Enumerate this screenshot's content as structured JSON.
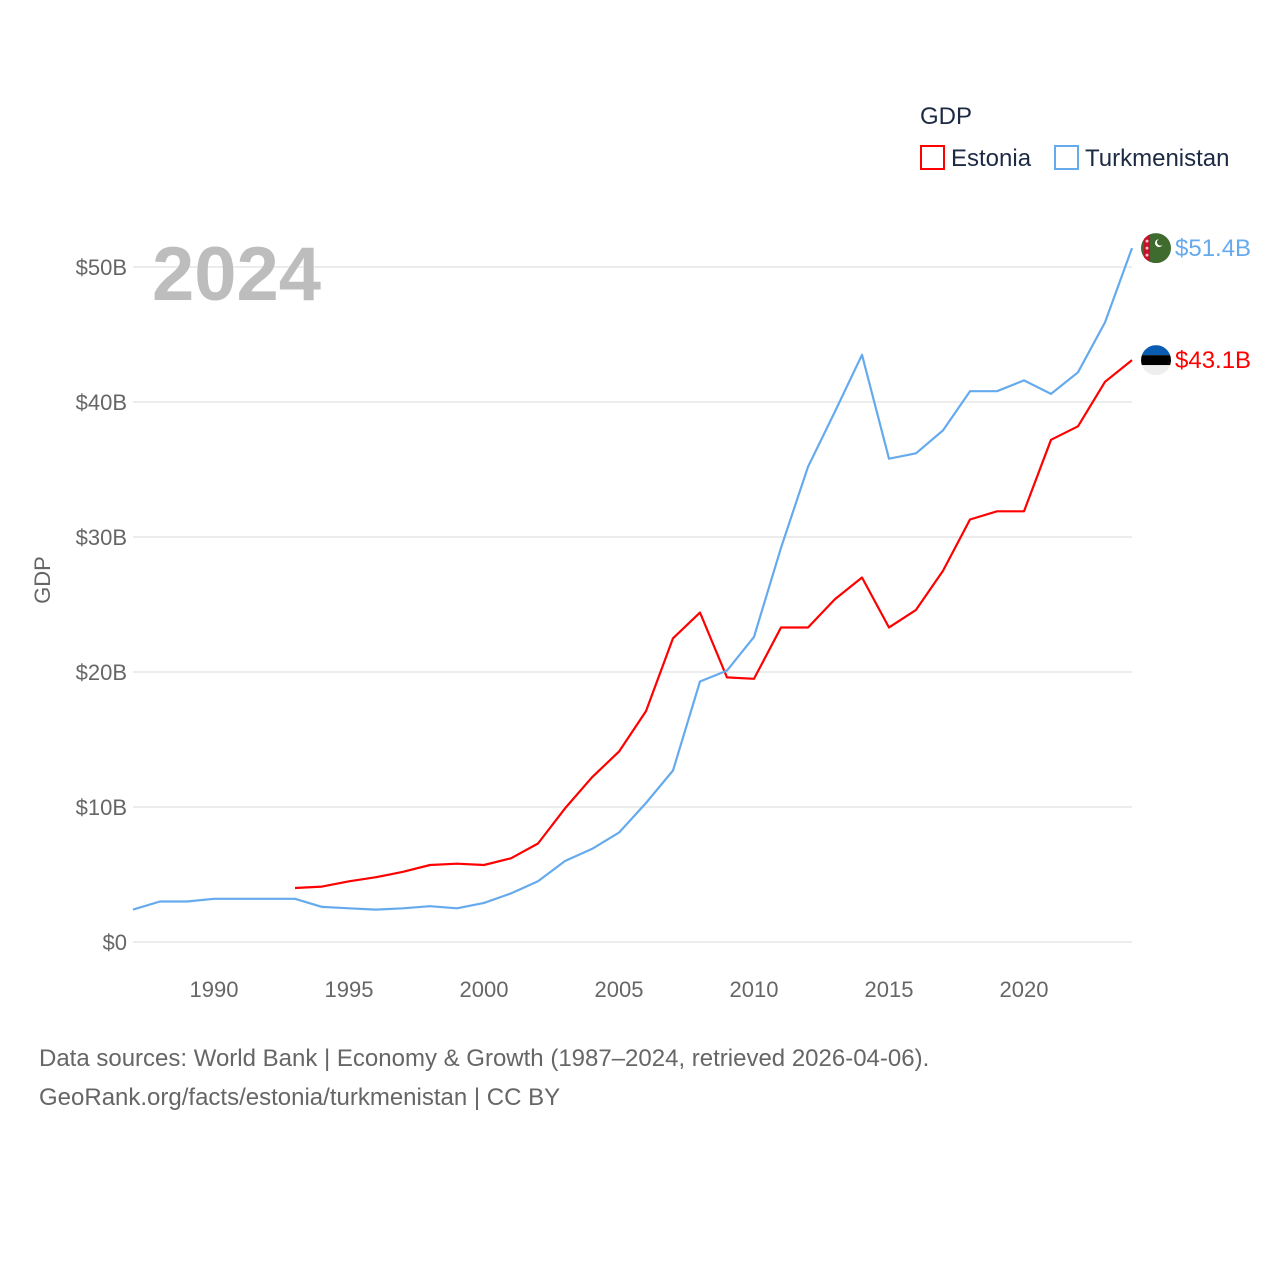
{
  "chart_data": {
    "type": "line",
    "title": "GDP",
    "year_label": "2024",
    "xlabel": "",
    "ylabel": "GDP",
    "xlim": [
      1987,
      2024
    ],
    "ylim": [
      0,
      50
    ],
    "x_ticks": [
      1990,
      1995,
      2000,
      2005,
      2010,
      2015,
      2020
    ],
    "x_tick_labels": [
      "1990",
      "1995",
      "2000",
      "2005",
      "2010",
      "2015",
      "2020"
    ],
    "y_ticks": [
      0,
      10,
      20,
      30,
      40,
      50
    ],
    "y_tick_labels": [
      "$0",
      "$10B",
      "$20B",
      "$30B",
      "$40B",
      "$50B"
    ],
    "grid": true,
    "legend_placement": "top-right",
    "series": [
      {
        "name": "Estonia",
        "color": "#ff0000",
        "end_label": "$43.1B",
        "flag": "estonia-flag",
        "x": [
          1993,
          1994,
          1995,
          1996,
          1997,
          1998,
          1999,
          2000,
          2001,
          2002,
          2003,
          2004,
          2005,
          2006,
          2007,
          2008,
          2009,
          2010,
          2011,
          2012,
          2013,
          2014,
          2015,
          2016,
          2017,
          2018,
          2019,
          2020,
          2021,
          2022,
          2023,
          2024
        ],
        "values": [
          4.0,
          4.1,
          4.5,
          4.8,
          5.2,
          5.7,
          5.8,
          5.7,
          6.2,
          7.3,
          9.9,
          12.2,
          14.1,
          17.1,
          22.5,
          24.4,
          19.6,
          19.5,
          23.3,
          23.3,
          25.4,
          27.0,
          23.3,
          24.6,
          27.5,
          31.3,
          31.9,
          31.9,
          37.2,
          38.2,
          41.5,
          43.1
        ]
      },
      {
        "name": "Turkmenistan",
        "color": "#66aaee",
        "end_label": "$51.4B",
        "flag": "turkmenistan-flag",
        "x": [
          1987,
          1988,
          1989,
          1990,
          1991,
          1992,
          1993,
          1994,
          1995,
          1996,
          1997,
          1998,
          1999,
          2000,
          2001,
          2002,
          2003,
          2004,
          2005,
          2006,
          2007,
          2008,
          2009,
          2010,
          2011,
          2012,
          2013,
          2014,
          2015,
          2016,
          2017,
          2018,
          2019,
          2020,
          2021,
          2022,
          2023,
          2024
        ],
        "values": [
          2.4,
          3.0,
          3.0,
          3.2,
          3.2,
          3.2,
          3.2,
          2.6,
          2.5,
          2.4,
          2.5,
          2.65,
          2.5,
          2.9,
          3.6,
          4.5,
          6.0,
          6.9,
          8.1,
          10.3,
          12.7,
          19.3,
          20.1,
          22.6,
          29.2,
          35.2,
          39.3,
          43.5,
          35.8,
          36.2,
          37.9,
          40.8,
          40.8,
          41.6,
          40.6,
          42.2,
          45.9,
          51.4
        ]
      }
    ]
  },
  "footer": {
    "line1": "Data sources: World Bank | Economy & Growth (1987–2024, retrieved 2026-04-06).",
    "line2": "GeoRank.org/facts/estonia/turkmenistan | CC BY"
  }
}
